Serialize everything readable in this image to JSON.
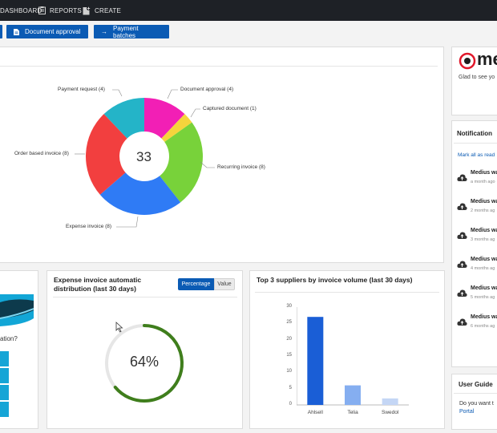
{
  "topnav": {
    "items": [
      {
        "label": "DASHBOARD",
        "icon": "dashboard-icon"
      },
      {
        "label": "REPORTS",
        "icon": "reports-icon"
      },
      {
        "label": "CREATE",
        "icon": "create-document-icon"
      }
    ]
  },
  "actions": {
    "document_approval": "Document approval",
    "payment_batches": "Payment batches"
  },
  "donut": {
    "total": "33",
    "labels": {
      "payment_request": "Payment request (4)",
      "document_approval": "Document approval (4)",
      "captured_document": "Captured document (1)",
      "recurring_invoice": "Recurring invoice (8)",
      "expense_invoice": "Expense invoice (8)",
      "order_based_invoice": "Order based invoice (8)"
    }
  },
  "chart_data": [
    {
      "type": "pie",
      "categories": [
        "Document approval",
        "Captured document",
        "Recurring invoice",
        "Expense invoice",
        "Order based invoice",
        "Payment request"
      ],
      "values": [
        4,
        1,
        8,
        8,
        8,
        4
      ],
      "colors": [
        "#f21fb5",
        "#f5d43c",
        "#78d23a",
        "#2f7bf5",
        "#f23f3f",
        "#24b4c8"
      ],
      "center_label": "33"
    },
    {
      "type": "bar",
      "title": "Top 3 suppliers by invoice volume (last 30 days)",
      "categories": [
        "Ahlsell",
        "Telia",
        "Swedol"
      ],
      "values": [
        27,
        6,
        2
      ],
      "colors": [
        "#1a5ed6",
        "#85aef0",
        "#c4d6f5"
      ],
      "ylim": [
        0,
        30
      ],
      "yticks": [
        0,
        5,
        10,
        15,
        20,
        25,
        30
      ],
      "grid": false
    },
    {
      "type": "pie",
      "title": "Expense invoice automatic distribution (last 30 days)",
      "values": [
        64,
        36
      ],
      "colors": [
        "#3f7e1c",
        "#e6e6e6"
      ],
      "center_label": "64%"
    }
  ],
  "expense_card": {
    "title": "Expense invoice automatic distribution (last 30 days)",
    "toggle": {
      "percentage": "Percentage",
      "value": "Value"
    },
    "percent": "64%"
  },
  "suppliers_card": {
    "title": "Top 3 suppliers by invoice volume (last 30 days)",
    "yticks": [
      "30",
      "25",
      "20",
      "15",
      "10",
      "5",
      "0"
    ],
    "categories": [
      "Ahlsell",
      "Telia",
      "Swedol"
    ]
  },
  "left_card": {
    "text_fragment": "ation?"
  },
  "welcome": {
    "logo_text": "me",
    "greeting": "Glad to see yo"
  },
  "notifications": {
    "title": "Notification",
    "mark_all": "Mark all as read",
    "items": [
      {
        "title": "Medius wa",
        "time": "a month ago"
      },
      {
        "title": "Medius wa",
        "time": "2 months ag"
      },
      {
        "title": "Medius wa",
        "time": "3 months ag"
      },
      {
        "title": "Medius wa",
        "time": "4 months ag"
      },
      {
        "title": "Medius wa",
        "time": "5 months ag"
      },
      {
        "title": "Medius wa",
        "time": "6 months ag"
      }
    ]
  },
  "user_guide": {
    "title": "User Guide",
    "text": "Do you want t",
    "link": "Portal"
  }
}
